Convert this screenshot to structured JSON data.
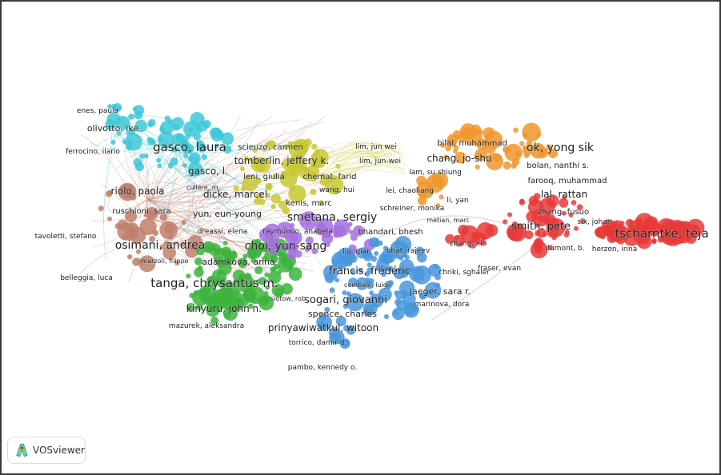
{
  "app": {
    "logo_text": "VOSviewer"
  },
  "clusters": {
    "brown": "#c0806c",
    "cyan": "#3ec8d8",
    "yellow": "#c8c832",
    "green": "#3cb43c",
    "purple": "#a56ee0",
    "blue": "#4896dc",
    "orange": "#f0962c",
    "red": "#e83a3a"
  },
  "labels": [
    {
      "text": "enes, paula",
      "cluster": "cyan"
    },
    {
      "text": "olivotto, ike",
      "cluster": "cyan"
    },
    {
      "text": "ferrocino, ilario",
      "cluster": "cyan"
    },
    {
      "text": "gasco, laura",
      "cluster": "cyan"
    },
    {
      "text": "gasco, l.",
      "cluster": "cyan"
    },
    {
      "text": "cullere, m.",
      "cluster": "cyan"
    },
    {
      "text": "riolo, paola",
      "cluster": "brown"
    },
    {
      "text": "ruschioni, sara",
      "cluster": "brown"
    },
    {
      "text": "tavoletti, stefano",
      "cluster": "brown"
    },
    {
      "text": "osimani, andrea",
      "cluster": "brown"
    },
    {
      "text": "marzoli, filippo",
      "cluster": "brown"
    },
    {
      "text": "belleggia, luca",
      "cluster": "brown"
    },
    {
      "text": "scieuzo, carmen",
      "cluster": "yellow"
    },
    {
      "text": "tomberlin, jeffery k.",
      "cluster": "yellow"
    },
    {
      "text": "leni, giulia",
      "cluster": "yellow"
    },
    {
      "text": "chemat, farid",
      "cluster": "yellow"
    },
    {
      "text": "lim, jun wei",
      "cluster": "yellow"
    },
    {
      "text": "lim, jun-wei",
      "cluster": "yellow"
    },
    {
      "text": "wang, hui",
      "cluster": "yellow"
    },
    {
      "text": "dicke, marcel",
      "cluster": "yellow"
    },
    {
      "text": "kenis, marc",
      "cluster": "yellow"
    },
    {
      "text": "yun, eun-young",
      "cluster": "purple"
    },
    {
      "text": "smetana, sergiy",
      "cluster": "yellow"
    },
    {
      "text": "dreassi, elena",
      "cluster": "purple"
    },
    {
      "text": "raymundo, anabela",
      "cluster": "purple"
    },
    {
      "text": "bhandari, bhesh",
      "cluster": "purple"
    },
    {
      "text": "choi, yun-sang",
      "cluster": "purple"
    },
    {
      "text": "liu, qian",
      "cluster": "purple"
    },
    {
      "text": "adámková, anna",
      "cluster": "green"
    },
    {
      "text": "bhat, rajeev",
      "cluster": "blue"
    },
    {
      "text": "francis, frédéric",
      "cluster": "blue"
    },
    {
      "text": "chriki, sghaier",
      "cluster": "blue"
    },
    {
      "text": "tanga, chrysantus m.",
      "cluster": "green"
    },
    {
      "text": "cembalo, luigi",
      "cluster": "blue"
    },
    {
      "text": "sogari, giovanni",
      "cluster": "blue"
    },
    {
      "text": "jaeger, sara r.",
      "cluster": "blue"
    },
    {
      "text": "marinova, dora",
      "cluster": "blue"
    },
    {
      "text": "kinyuru, john n.",
      "cluster": "green"
    },
    {
      "text": "siotow, rob",
      "cluster": "green"
    },
    {
      "text": "spence, charles",
      "cluster": "blue"
    },
    {
      "text": "mazurek, aleksandra",
      "cluster": "brown"
    },
    {
      "text": "prinyawiwatkul, witoon",
      "cluster": "green"
    },
    {
      "text": "torrico, damir d.",
      "cluster": "blue"
    },
    {
      "text": "pambo, kennedy o.",
      "cluster": "blue"
    },
    {
      "text": "bilal, muhammad",
      "cluster": "orange"
    },
    {
      "text": "ok, yong sik",
      "cluster": "orange"
    },
    {
      "text": "chang, jo-shu",
      "cluster": "orange"
    },
    {
      "text": "lam, su shiung",
      "cluster": "orange"
    },
    {
      "text": "bolan, nanthi s.",
      "cluster": "orange"
    },
    {
      "text": "farooq, muhammad",
      "cluster": "red"
    },
    {
      "text": "lei, chaoliang",
      "cluster": "orange"
    },
    {
      "text": "li, yan",
      "cluster": "orange"
    },
    {
      "text": "lal, rattan",
      "cluster": "red"
    },
    {
      "text": "schreiner, monika",
      "cluster": "yellow"
    },
    {
      "text": "zhang, fusuo",
      "cluster": "red"
    },
    {
      "text": "metian, marc",
      "cluster": "red"
    },
    {
      "text": "smith, pete",
      "cluster": "red"
    },
    {
      "text": "six, johan",
      "cluster": "red"
    },
    {
      "text": "tscharntke, teja",
      "cluster": "red"
    },
    {
      "text": "zhang, xin",
      "cluster": "red"
    },
    {
      "text": "dumont, b.",
      "cluster": "red"
    },
    {
      "text": "herzon, irina",
      "cluster": "red"
    },
    {
      "text": "fraser, evan",
      "cluster": "blue"
    }
  ]
}
